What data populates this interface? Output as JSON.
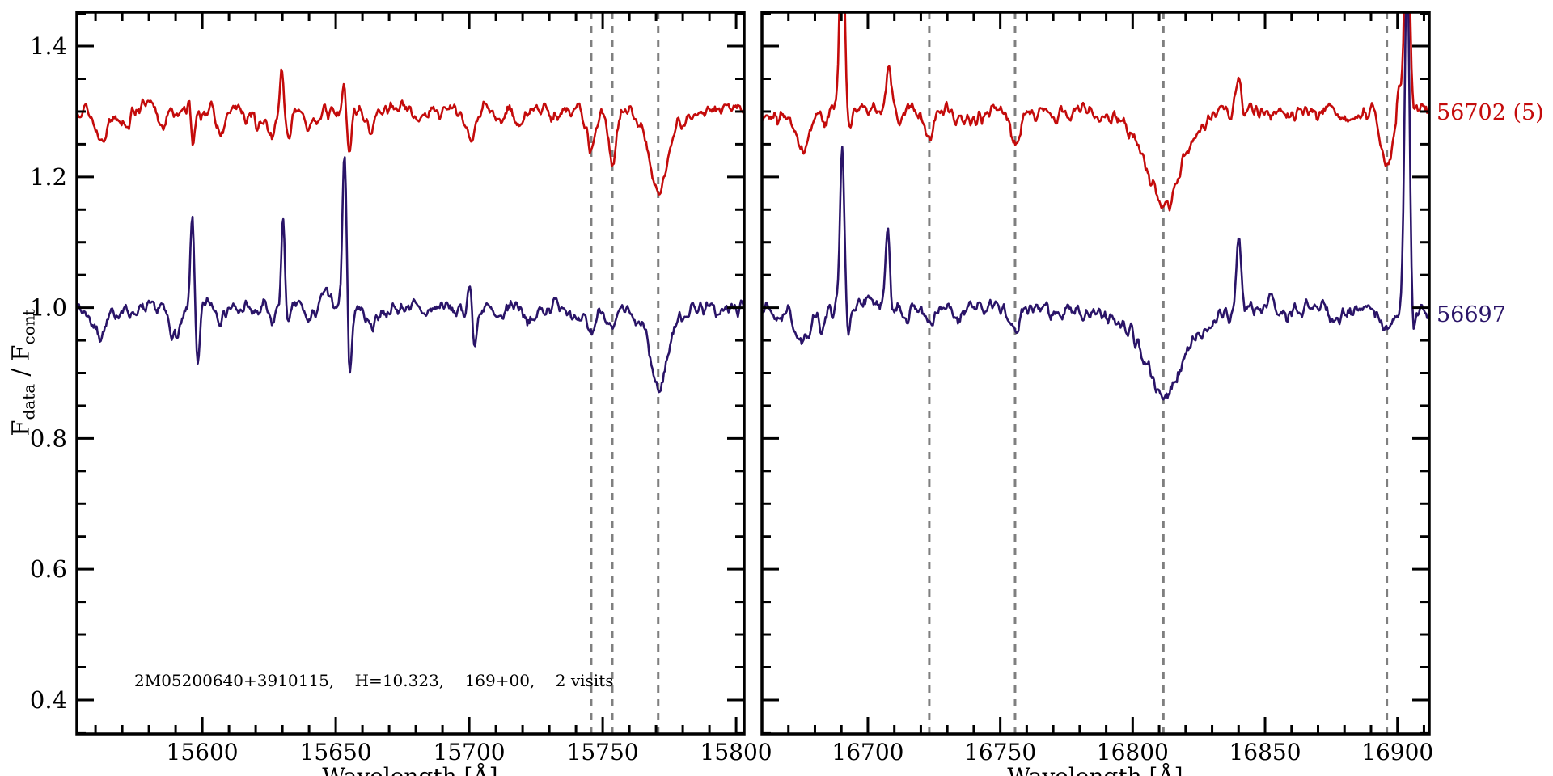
{
  "figure": {
    "background": "#ffffff",
    "frame_color": "#000000",
    "dashed_line_color": "#7f7f7f",
    "annotation": "2M05200640+3910115,    H=10.323,    169+00,    2 visits",
    "y_axis": {
      "label_f1": "F",
      "label_sub1": "data",
      "label_mid": " / F",
      "label_sub2": "cont",
      "range": [
        0.348,
        1.452
      ],
      "major_ticks": [
        0.4,
        0.6,
        0.8,
        1.0,
        1.2,
        1.4
      ],
      "major_tick_labels": [
        "0.4",
        "0.6",
        "0.8",
        "1.0",
        "1.2",
        "1.4"
      ],
      "minor_step": 0.05
    },
    "series_labels": [
      {
        "text": "56702 (5)",
        "color": "#c40b0b"
      },
      {
        "text": "56697",
        "color": "#2a1468"
      }
    ]
  },
  "chart_data": [
    {
      "type": "line",
      "panel": "left",
      "x_title": "Wavelength [Å]",
      "x_range": [
        15553,
        15803
      ],
      "x_major_ticks": [
        15600,
        15650,
        15700,
        15750,
        15800
      ],
      "x_major_tick_labels": [
        "15600",
        "15650",
        "15700",
        "15750",
        "15800"
      ],
      "x_minor_step": 10,
      "dashed_lines": [
        15745.7,
        15753.6,
        15770.8
      ],
      "series": [
        {
          "name": "56697",
          "color": "#2a1468",
          "baseline": 1.0,
          "noise_amp": 0.011,
          "seed": 7,
          "features": [
            [
              15562,
              2.5,
              -0.038
            ],
            [
              15590,
              2.2,
              -0.042
            ],
            [
              15596.3,
              0.7,
              0.148
            ],
            [
              15598.3,
              0.8,
              -0.1
            ],
            [
              15607,
              1.5,
              -0.022
            ],
            [
              15620,
              1.5,
              -0.018
            ],
            [
              15626,
              1.2,
              -0.03
            ],
            [
              15630.3,
              0.7,
              0.128
            ],
            [
              15632.3,
              0.8,
              -0.038
            ],
            [
              15640,
              1.5,
              -0.02
            ],
            [
              15646,
              1.0,
              0.02
            ],
            [
              15653.3,
              0.75,
              0.235
            ],
            [
              15655.3,
              0.8,
              -0.108
            ],
            [
              15663,
              1.8,
              -0.025
            ],
            [
              15678,
              1.5,
              0.012
            ],
            [
              15700.3,
              0.7,
              0.052
            ],
            [
              15702,
              0.8,
              -0.062
            ],
            [
              15711,
              1.5,
              -0.02
            ],
            [
              15723,
              1.8,
              -0.028
            ],
            [
              15741,
              1.6,
              -0.025
            ],
            [
              15745.8,
              1.5,
              -0.035
            ],
            [
              15753.6,
              1.6,
              -0.038
            ],
            [
              15762,
              1.5,
              -0.02
            ],
            [
              15770.8,
              2.8,
              -0.085
            ],
            [
              15772,
              7,
              -0.035
            ]
          ]
        },
        {
          "name": "56702 (5)",
          "color": "#c40b0b",
          "baseline": 1.302,
          "noise_amp": 0.01,
          "seed": 13,
          "features": [
            [
              15562,
              2.5,
              -0.05
            ],
            [
              15572,
              1.5,
              -0.02
            ],
            [
              15585,
              1.8,
              -0.028
            ],
            [
              15595,
              0.6,
              0.03
            ],
            [
              15596.5,
              0.7,
              -0.058
            ],
            [
              15607,
              1.5,
              -0.032
            ],
            [
              15616,
              1.3,
              -0.02
            ],
            [
              15621,
              1.3,
              -0.03
            ],
            [
              15626,
              1.1,
              -0.042
            ],
            [
              15629.7,
              0.6,
              0.062
            ],
            [
              15632.3,
              1.0,
              -0.05
            ],
            [
              15640.5,
              1.4,
              -0.028
            ],
            [
              15653.2,
              0.6,
              0.05
            ],
            [
              15655,
              0.9,
              -0.062
            ],
            [
              15663,
              1.8,
              -0.03
            ],
            [
              15680,
              2,
              -0.015
            ],
            [
              15700.5,
              2.2,
              -0.05
            ],
            [
              15711,
              1.6,
              -0.022
            ],
            [
              15719,
              1.6,
              -0.022
            ],
            [
              15731,
              1.5,
              -0.015
            ],
            [
              15745.7,
              1.6,
              -0.058
            ],
            [
              15753.6,
              1.6,
              -0.082
            ],
            [
              15770.8,
              2.6,
              -0.09
            ],
            [
              15772,
              6,
              -0.035
            ]
          ]
        }
      ]
    },
    {
      "type": "line",
      "panel": "right",
      "x_title": "Wavelength [Å]",
      "x_range": [
        16660,
        16912
      ],
      "x_major_ticks": [
        16700,
        16750,
        16800,
        16850,
        16900
      ],
      "x_major_tick_labels": [
        "16700",
        "16750",
        "16800",
        "16850",
        "16900"
      ],
      "x_minor_step": 10,
      "dashed_lines": [
        16723.2,
        16755.6,
        16811.6,
        16896
      ],
      "series": [
        {
          "name": "56697",
          "color": "#2a1468",
          "baseline": 1.0,
          "noise_amp": 0.012,
          "seed": 21,
          "features": [
            [
              16666,
              1.5,
              -0.02
            ],
            [
              16675,
              2.6,
              -0.052
            ],
            [
              16683,
              1.2,
              -0.03
            ],
            [
              16690.3,
              0.85,
              0.25
            ],
            [
              16692.6,
              0.7,
              -0.035
            ],
            [
              16700,
              1.5,
              0.012
            ],
            [
              16707.5,
              0.8,
              0.115
            ],
            [
              16715,
              1.5,
              -0.018
            ],
            [
              16723.2,
              1.6,
              -0.028
            ],
            [
              16734,
              1.8,
              -0.022
            ],
            [
              16747,
              1.5,
              0.012
            ],
            [
              16755.6,
              1.8,
              -0.032
            ],
            [
              16770,
              2,
              -0.02
            ],
            [
              16811.6,
              5.5,
              -0.082
            ],
            [
              16811.6,
              13,
              -0.058
            ],
            [
              16840,
              0.9,
              0.108
            ],
            [
              16852,
              1.5,
              0.012
            ],
            [
              16877,
              2,
              -0.018
            ],
            [
              16896,
              2.4,
              -0.042
            ],
            [
              16903.6,
              0.9,
              0.55
            ],
            [
              16906,
              0.8,
              -0.03
            ]
          ]
        },
        {
          "name": "56702 (5)",
          "color": "#c40b0b",
          "baseline": 1.302,
          "noise_amp": 0.011,
          "seed": 29,
          "features": [
            [
              16666,
              1.5,
              -0.025
            ],
            [
              16675,
              2.4,
              -0.062
            ],
            [
              16684,
              1.0,
              -0.025
            ],
            [
              16690.3,
              0.9,
              0.33
            ],
            [
              16693,
              0.8,
              -0.03
            ],
            [
              16708,
              1.1,
              0.062
            ],
            [
              16712,
              1.2,
              -0.02
            ],
            [
              16723.2,
              1.7,
              -0.048
            ],
            [
              16734,
              1.8,
              -0.02
            ],
            [
              16740,
              1.5,
              -0.018
            ],
            [
              16755.6,
              1.7,
              -0.042
            ],
            [
              16770,
              2,
              -0.018
            ],
            [
              16811.6,
              5,
              -0.105
            ],
            [
              16811.6,
              12,
              -0.048
            ],
            [
              16840,
              0.85,
              0.06
            ],
            [
              16860,
              2,
              -0.015
            ],
            [
              16880,
              2,
              -0.012
            ],
            [
              16896,
              2.4,
              -0.082
            ],
            [
              16900.5,
              0.8,
              0.05
            ],
            [
              16903.6,
              0.85,
              0.42
            ]
          ]
        }
      ]
    }
  ]
}
